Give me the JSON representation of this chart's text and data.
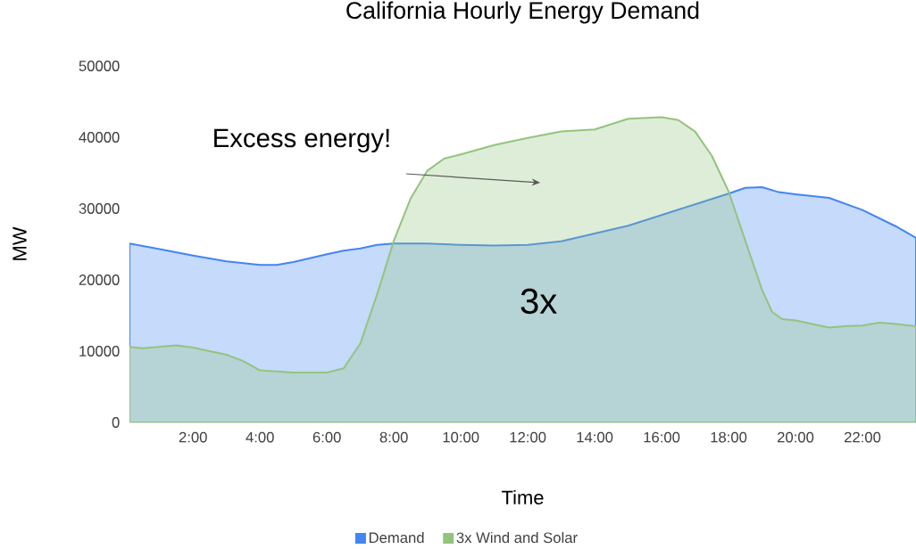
{
  "chart_data": {
    "type": "area",
    "title": "California Hourly Energy Demand",
    "xlabel": "Time",
    "ylabel": "MW",
    "x": [
      0.1,
      1,
      2,
      3,
      4,
      4.5,
      5,
      6,
      6.5,
      7,
      7.5,
      8,
      9,
      10,
      11,
      12,
      13,
      14,
      15,
      16,
      17,
      18,
      18.5,
      19,
      19.5,
      20,
      21,
      22,
      23,
      23.6
    ],
    "series": [
      {
        "name": "Demand",
        "color": "#4285f4",
        "values": [
          25100,
          24300,
          23400,
          22600,
          22100,
          22100,
          22500,
          23600,
          24100,
          24400,
          24900,
          25100,
          25100,
          24900,
          24800,
          24900,
          25400,
          26500,
          27600,
          29100,
          30600,
          32100,
          32900,
          33000,
          32300,
          32000,
          31500,
          29800,
          27500,
          25900
        ]
      },
      {
        "name": "3x Wind and Solar",
        "color": "#93c47d",
        "x": [
          0.1,
          0.5,
          1.5,
          2,
          3,
          3.5,
          4,
          5,
          6,
          6.5,
          7,
          7.5,
          8,
          8.5,
          9,
          9.5,
          10,
          11,
          12,
          13,
          14,
          15,
          16,
          16.5,
          17,
          17.5,
          18,
          18.5,
          19,
          19.3,
          19.6,
          20,
          20.5,
          21,
          21.5,
          22,
          22.5,
          23,
          23.6
        ],
        "values": [
          10600,
          10400,
          10800,
          10500,
          9500,
          8600,
          7300,
          7000,
          7000,
          7600,
          11100,
          18000,
          25500,
          31400,
          35300,
          37000,
          37600,
          38900,
          39900,
          40800,
          41100,
          42600,
          42800,
          42400,
          40800,
          37400,
          32400,
          25500,
          18600,
          15500,
          14500,
          14300,
          13800,
          13300,
          13500,
          13600,
          14000,
          13800,
          13500
        ]
      }
    ],
    "xlim": [
      0.1,
      23.6
    ],
    "xticks": [
      {
        "value": 2,
        "label": "2:00"
      },
      {
        "value": 4,
        "label": "4:00"
      },
      {
        "value": 6,
        "label": "6:00"
      },
      {
        "value": 8,
        "label": "8:00"
      },
      {
        "value": 10,
        "label": "10:00"
      },
      {
        "value": 12,
        "label": "12:00"
      },
      {
        "value": 14,
        "label": "14:00"
      },
      {
        "value": 16,
        "label": "16:00"
      },
      {
        "value": 18,
        "label": "18:00"
      },
      {
        "value": 20,
        "label": "20:00"
      },
      {
        "value": 22,
        "label": "22:00"
      }
    ],
    "ylim": [
      0,
      50000
    ],
    "yticks": [
      0,
      10000,
      20000,
      30000,
      40000,
      50000
    ],
    "annotations": [
      "Excess energy!",
      "3x"
    ],
    "legend": "bottom",
    "grid": false
  }
}
